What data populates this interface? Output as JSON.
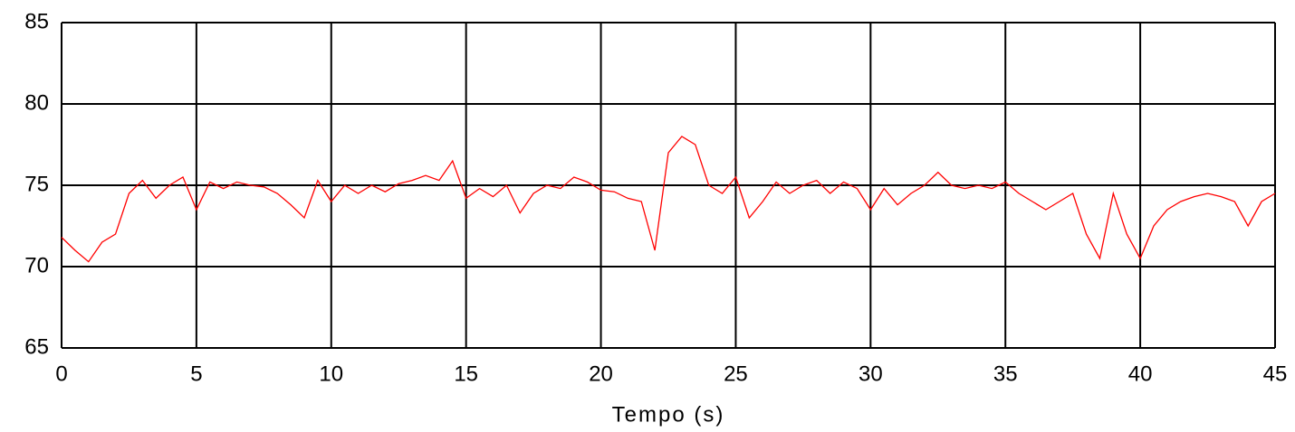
{
  "chart_data": {
    "type": "line",
    "x_label": "Tempo (s)",
    "x": [
      0,
      0.5,
      1,
      1.5,
      2,
      2.5,
      3,
      3.5,
      4,
      4.5,
      5,
      5.5,
      6,
      6.5,
      7,
      7.5,
      8,
      8.5,
      9,
      9.5,
      10,
      10.5,
      11,
      11.5,
      12,
      12.5,
      13,
      13.5,
      14,
      14.5,
      15,
      15.5,
      16,
      16.5,
      17,
      17.5,
      18,
      18.5,
      19,
      19.5,
      20,
      20.5,
      21,
      21.5,
      22,
      22.5,
      23,
      23.5,
      24,
      24.5,
      25,
      25.5,
      26,
      26.5,
      27,
      27.5,
      28,
      28.5,
      29,
      29.5,
      30,
      30.5,
      31,
      31.5,
      32,
      32.5,
      33,
      33.5,
      34,
      34.5,
      35,
      35.5,
      36,
      36.5,
      37,
      37.5,
      38,
      38.5,
      39,
      39.5,
      40,
      40.5,
      41,
      41.5,
      42,
      42.5,
      43,
      43.5,
      44,
      44.5,
      45
    ],
    "series": [
      {
        "color": "#ff0000",
        "values": [
          71.8,
          71.0,
          70.3,
          71.5,
          72.0,
          74.5,
          75.3,
          74.2,
          75.0,
          75.5,
          73.5,
          75.2,
          74.8,
          75.2,
          75.0,
          74.9,
          74.5,
          73.8,
          73.0,
          75.3,
          74.0,
          75.0,
          74.5,
          75.0,
          74.6,
          75.1,
          75.3,
          75.6,
          75.3,
          76.5,
          74.2,
          74.8,
          74.3,
          75.0,
          73.3,
          74.5,
          75.0,
          74.8,
          75.5,
          75.2,
          74.7,
          74.6,
          74.2,
          74.0,
          71.0,
          77.0,
          78.0,
          77.5,
          75.0,
          74.5,
          75.5,
          73.0,
          74.0,
          75.2,
          74.5,
          75.0,
          75.3,
          74.5,
          75.2,
          74.8,
          73.5,
          74.8,
          73.8,
          74.5,
          75.0,
          75.8,
          75.0,
          74.8,
          75.0,
          74.8,
          75.2,
          74.5,
          74.0,
          73.5,
          74.0,
          74.5,
          72.0,
          70.5,
          74.5,
          72.0,
          70.5,
          72.5,
          73.5,
          74.0,
          74.3,
          74.5,
          74.3,
          74.0,
          72.5,
          74.0,
          74.5
        ]
      }
    ],
    "xlim": [
      0,
      45
    ],
    "xticks": [
      0,
      5,
      10,
      15,
      20,
      25,
      30,
      35,
      40,
      45
    ],
    "ylim": [
      65,
      85
    ],
    "yticks": [
      65,
      70,
      75,
      80,
      85
    ],
    "grid": true
  }
}
